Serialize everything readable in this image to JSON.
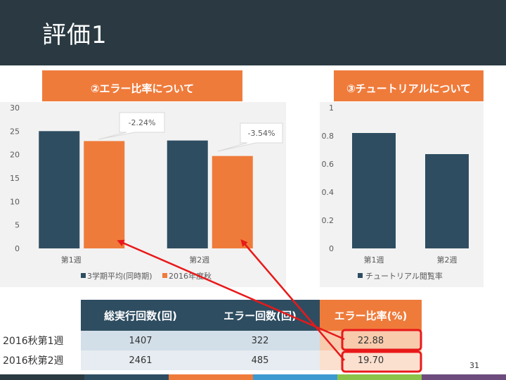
{
  "slide": {
    "title": "評価1",
    "page_number": "31"
  },
  "sections": {
    "error_rate": "②エラー比率について",
    "tutorial": "③チュートリアルについて"
  },
  "chart_data": [
    {
      "type": "bar",
      "title": "",
      "categories": [
        "第1週",
        "第2週"
      ],
      "series": [
        {
          "name": "3学期平均(同時期)",
          "color": "#2e4d61",
          "values": [
            25,
            23
          ]
        },
        {
          "name": "2016年度秋",
          "color": "#ef7b3b",
          "values": [
            22.88,
            19.7
          ]
        }
      ],
      "ylim": [
        0,
        30
      ],
      "yticks": [
        "0",
        "5",
        "10",
        "15",
        "20",
        "25",
        "30"
      ],
      "callouts": [
        "-2.24%",
        "-3.54%"
      ],
      "legend_position": "bottom",
      "grid": false
    },
    {
      "type": "bar",
      "title": "",
      "categories": [
        "第1週",
        "第2週"
      ],
      "series": [
        {
          "name": "チュートリアル閲覧率",
          "color": "#2e4d61",
          "values": [
            0.82,
            0.67
          ]
        }
      ],
      "ylim": [
        0,
        1
      ],
      "yticks": [
        "0",
        "0.2",
        "0.4",
        "0.6",
        "0.8",
        "1"
      ],
      "legend_position": "bottom",
      "grid": false
    }
  ],
  "table": {
    "headers": [
      "総実行回数(回)",
      "エラー回数(回)",
      "エラー比率(%)"
    ],
    "rows": [
      {
        "label": "2016秋第1週",
        "cells": [
          "1407",
          "322",
          "22.88"
        ]
      },
      {
        "label": "2016秋第2週",
        "cells": [
          "2461",
          "485",
          "19.70"
        ]
      }
    ]
  },
  "colors": {
    "header_bg": "#2b3a42",
    "accent_orange": "#ef7b3b",
    "accent_navy": "#2e4d61",
    "annotation_red": "#e8191a"
  },
  "footer_colors": [
    "#2b3a42",
    "#2e4d61",
    "#ef7b3b",
    "#3d9ad1",
    "#8bc34a",
    "#6d4c7d"
  ]
}
